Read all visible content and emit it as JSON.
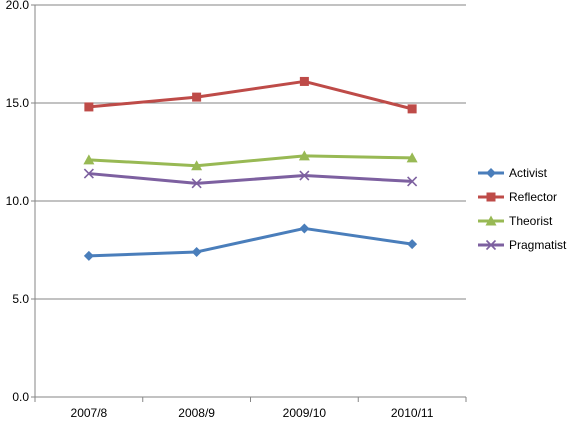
{
  "chart_data": {
    "type": "line",
    "title": "",
    "xlabel": "",
    "ylabel": "",
    "categories": [
      "2007/8",
      "2008/9",
      "2009/10",
      "2010/11"
    ],
    "ylim": [
      0,
      20
    ],
    "yticks": [
      "0.0",
      "5.0",
      "10.0",
      "15.0",
      "20.0"
    ],
    "grid": true,
    "legend_position": "right",
    "series": [
      {
        "name": "Activist",
        "color": "#4A7EBB",
        "marker": "diamond",
        "values": [
          7.2,
          7.4,
          8.6,
          7.8
        ]
      },
      {
        "name": "Reflector",
        "color": "#BE4B48",
        "marker": "square",
        "values": [
          14.8,
          15.3,
          16.1,
          14.7
        ]
      },
      {
        "name": "Theorist",
        "color": "#98B954",
        "marker": "triangle",
        "values": [
          12.1,
          11.8,
          12.3,
          12.2
        ]
      },
      {
        "name": "Pragmatist",
        "color": "#7D60A0",
        "marker": "x",
        "values": [
          11.4,
          10.9,
          11.3,
          11.0
        ]
      }
    ]
  }
}
